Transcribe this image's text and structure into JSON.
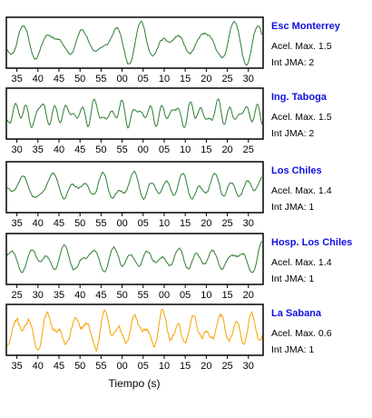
{
  "chart_data": [
    {
      "type": "line",
      "station": "Esc Monterrey",
      "acel_label": "Acel. Max. 1.5",
      "jma_label": "Int JMA: 2",
      "color": "#2e7d32",
      "tick_labels": [
        "35",
        "40",
        "45",
        "50",
        "55",
        "00",
        "05",
        "10",
        "15",
        "20",
        "25",
        "30"
      ],
      "x_range_seconds": [
        32.5,
        93.5
      ],
      "first_tick_seconds": 35,
      "seed": 11,
      "freq": 1.6,
      "amp": 0.85
    },
    {
      "type": "line",
      "station": "Ing. Taboga",
      "acel_label": "Acel. Max. 1.5",
      "jma_label": "Int JMA: 2",
      "color": "#2e7d32",
      "tick_labels": [
        "30",
        "35",
        "40",
        "45",
        "50",
        "55",
        "00",
        "05",
        "10",
        "15",
        "20",
        "25"
      ],
      "x_range_seconds": [
        27.5,
        88.5
      ],
      "first_tick_seconds": 30,
      "seed": 23,
      "freq": 1.9,
      "amp": 0.7
    },
    {
      "type": "line",
      "station": "Los Chiles",
      "acel_label": "Acel. Max. 1.4",
      "jma_label": "Int JMA: 1",
      "color": "#2e7d32",
      "tick_labels": [
        "35",
        "40",
        "45",
        "50",
        "55",
        "00",
        "05",
        "10",
        "15",
        "20",
        "25",
        "30"
      ],
      "x_range_seconds": [
        32.5,
        93.5
      ],
      "first_tick_seconds": 35,
      "seed": 37,
      "freq": 1.3,
      "amp": 0.8
    },
    {
      "type": "line",
      "station": "Hosp. Los Chiles",
      "acel_label": "Acel. Max. 1.4",
      "jma_label": "Int JMA: 1",
      "color": "#2e7d32",
      "tick_labels": [
        "25",
        "30",
        "35",
        "40",
        "45",
        "50",
        "55",
        "00",
        "05",
        "10",
        "15",
        "20"
      ],
      "x_range_seconds": [
        22.5,
        83.5
      ],
      "first_tick_seconds": 25,
      "seed": 53,
      "freq": 1.4,
      "amp": 0.8
    },
    {
      "type": "line",
      "station": "La Sabana",
      "acel_label": "Acel. Max. 0.6",
      "jma_label": "Int JMA: 1",
      "color": "#f5a300",
      "tick_labels": [
        "35",
        "40",
        "45",
        "50",
        "55",
        "00",
        "05",
        "10",
        "15",
        "20",
        "25",
        "30"
      ],
      "x_range_seconds": [
        32.5,
        93.5
      ],
      "first_tick_seconds": 35,
      "seed": 71,
      "freq": 1.2,
      "amp": 0.75
    }
  ],
  "xlabel": "Tiempo (s)"
}
